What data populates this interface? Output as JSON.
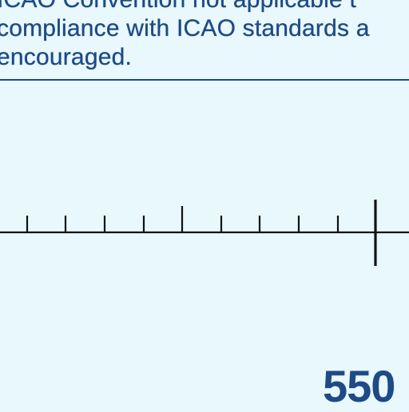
{
  "note": {
    "lines": [
      "ICAO Convention not applicable t",
      "compliance with ICAO standards a",
      "encouraged."
    ]
  },
  "scale": {
    "distance_label": "550"
  },
  "colors": {
    "background": "#e8f8fc",
    "text": "#1e4a86",
    "scale_line": "#111111"
  }
}
